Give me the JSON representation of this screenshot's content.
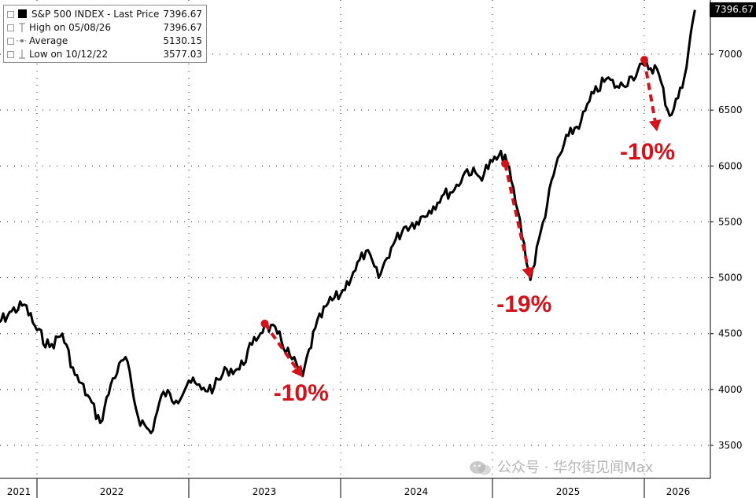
{
  "chart_data": {
    "type": "line",
    "title": "",
    "xlabel": "",
    "ylabel": "",
    "ylim": [
      3400,
      7600
    ],
    "yticks": [
      3500,
      4000,
      4500,
      5000,
      5500,
      6000,
      6500,
      7000
    ],
    "x_year_labels": [
      "2021",
      "2022",
      "2023",
      "2024",
      "2025",
      "2026"
    ],
    "grid": true,
    "legend_placement": "top-left",
    "legend": {
      "series_label": "S&P 500 INDEX - Last Price",
      "series_value": "7396.67",
      "high_label": "High on 05/08/26",
      "high_value": "7396.67",
      "avg_label": "Average",
      "avg_value": "5130.15",
      "low_label": "Low on 10/12/22",
      "low_value": "3577.03"
    },
    "last_price_tag": "7396.67",
    "series": [
      {
        "name": "S&P 500 INDEX - Last Price",
        "color": "#000000",
        "x": [
          "2021-09",
          "2021-10",
          "2021-11",
          "2021-12",
          "2022-01",
          "2022-02",
          "2022-03",
          "2022-04",
          "2022-05",
          "2022-06",
          "2022-07",
          "2022-08",
          "2022-09",
          "2022-10",
          "2022-11",
          "2022-12",
          "2023-01",
          "2023-02",
          "2023-03",
          "2023-04",
          "2023-05",
          "2023-06",
          "2023-07",
          "2023-08",
          "2023-09",
          "2023-10",
          "2023-11",
          "2023-12",
          "2024-01",
          "2024-02",
          "2024-03",
          "2024-04",
          "2024-05",
          "2024-06",
          "2024-07",
          "2024-08",
          "2024-09",
          "2024-10",
          "2024-11",
          "2024-12",
          "2025-01",
          "2025-02",
          "2025-03",
          "2025-04",
          "2025-05",
          "2025-06",
          "2025-07",
          "2025-08",
          "2025-09",
          "2025-10",
          "2025-11",
          "2025-12",
          "2026-01",
          "2026-02",
          "2026-03",
          "2026-04",
          "2026-05"
        ],
        "values": [
          4360,
          4600,
          4700,
          4760,
          4530,
          4380,
          4500,
          4130,
          3950,
          3700,
          4100,
          4290,
          3750,
          3610,
          3980,
          3900,
          4080,
          4000,
          4020,
          4180,
          4180,
          4400,
          4580,
          4500,
          4300,
          4120,
          4550,
          4770,
          4850,
          5050,
          5240,
          5000,
          5270,
          5450,
          5500,
          5600,
          5730,
          5790,
          5970,
          5900,
          6040,
          6100,
          5600,
          4980,
          5500,
          6000,
          6270,
          6400,
          6650,
          6780,
          6700,
          6800,
          6900,
          6870,
          6450,
          6700,
          7396.67
        ]
      }
    ],
    "annotations": [
      {
        "text": "-10%",
        "from": {
          "x": "2023-07",
          "y": 4590
        },
        "to": {
          "x": "2023-10",
          "y": 4110
        }
      },
      {
        "text": "-19%",
        "from": {
          "x": "2025-02",
          "y": 6020
        },
        "to": {
          "x": "2025-04",
          "y": 4990
        }
      },
      {
        "text": "-10%",
        "from": {
          "x": "2026-01",
          "y": 6950
        },
        "to": {
          "x": "2026-02",
          "y": 6310
        }
      }
    ],
    "annotation_color": "#d3121b"
  },
  "watermark": {
    "text": "公众号 · 华尔街见闻Max"
  }
}
